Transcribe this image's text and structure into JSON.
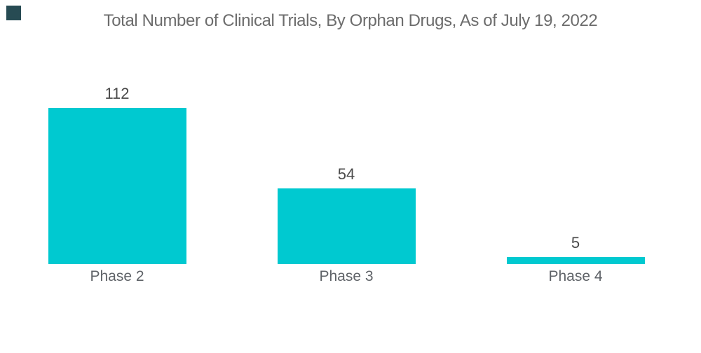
{
  "page": {
    "background_color": "#FFFFFF",
    "logo_color": "#274B53"
  },
  "chart_data": {
    "type": "bar",
    "title": "Total Number of Clinical Trials, By Orphan Drugs, As of July 19, 2022",
    "categories": [
      "Phase 2",
      "Phase 3",
      "Phase 4"
    ],
    "values": [
      112,
      54,
      5
    ],
    "xlabel": "",
    "ylabel": "",
    "ylim": [
      0,
      112
    ],
    "grid": false,
    "axes_visible": false,
    "data_labels": "above bars",
    "legend": "none",
    "bar_color": "#00C9D0",
    "title_color": "#6C6C6C",
    "value_label_color": "#4B4B4B",
    "category_label_color": "#5F6368"
  }
}
